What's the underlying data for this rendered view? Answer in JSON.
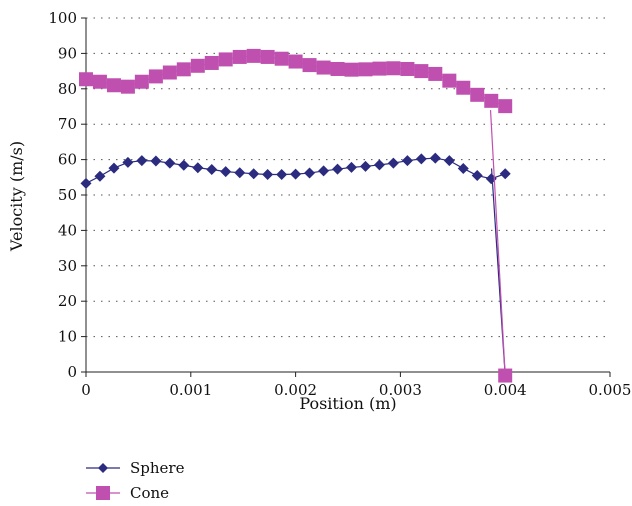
{
  "chart_data": {
    "type": "line",
    "xlabel": "Position (m)",
    "ylabel": "Velocity (m/s)",
    "xlim": [
      0,
      0.005
    ],
    "ylim": [
      0,
      100
    ],
    "x_ticks": [
      0,
      0.001,
      0.002,
      0.003,
      0.004,
      0.005
    ],
    "x_tick_labels": [
      "0",
      "0.001",
      "0.002",
      "0.003",
      "0.004",
      "0.005"
    ],
    "y_ticks": [
      0,
      10,
      20,
      30,
      40,
      50,
      60,
      70,
      80,
      90,
      100
    ],
    "y_tick_labels": [
      "0",
      "10",
      "20",
      "30",
      "40",
      "50",
      "60",
      "70",
      "80",
      "90",
      "100"
    ],
    "grid": "horizontal-dotted",
    "legend_position": "bottom-left",
    "series": [
      {
        "name": "Sphere",
        "color": "#2b2b80",
        "marker": "diamond",
        "x": [
          0,
          0.000133,
          0.000267,
          0.0004,
          0.000533,
          0.000667,
          0.0008,
          0.000933,
          0.001067,
          0.0012,
          0.001333,
          0.001467,
          0.0016,
          0.001733,
          0.001867,
          0.002,
          0.002133,
          0.002267,
          0.0024,
          0.002533,
          0.002667,
          0.0028,
          0.002933,
          0.003067,
          0.0032,
          0.003333,
          0.003467,
          0.0036,
          0.003733,
          0.003867,
          0.004
        ],
        "y": [
          53.3,
          55.3,
          57.6,
          59.2,
          59.7,
          59.6,
          59.0,
          58.4,
          57.7,
          57.2,
          56.6,
          56.3,
          56.0,
          55.8,
          55.8,
          55.9,
          56.2,
          56.8,
          57.3,
          57.8,
          58.1,
          58.5,
          59.0,
          59.7,
          60.2,
          60.4,
          59.7,
          57.5,
          55.5,
          54.6,
          56.0
        ],
        "tail_x": [
          0.00387,
          0.004
        ],
        "tail_y": [
          57.5,
          -1
        ]
      },
      {
        "name": "Cone",
        "color": "#c050b0",
        "marker": "square",
        "x": [
          0,
          0.000133,
          0.000267,
          0.0004,
          0.000533,
          0.000667,
          0.0008,
          0.000933,
          0.001067,
          0.0012,
          0.001333,
          0.001467,
          0.0016,
          0.001733,
          0.001867,
          0.002,
          0.002133,
          0.002267,
          0.0024,
          0.002533,
          0.002667,
          0.0028,
          0.002933,
          0.003067,
          0.0032,
          0.003333,
          0.003467,
          0.0036,
          0.003733,
          0.003867,
          0.004
        ],
        "y": [
          82.7,
          82.0,
          81.0,
          80.6,
          82.0,
          83.5,
          84.6,
          85.5,
          86.5,
          87.3,
          88.3,
          89.0,
          89.3,
          89.0,
          88.5,
          87.7,
          86.7,
          86.0,
          85.6,
          85.4,
          85.5,
          85.7,
          85.8,
          85.6,
          85.0,
          84.2,
          82.3,
          80.3,
          78.3,
          76.6,
          75.1
        ],
        "tail_x": [
          0.00386,
          0.004
        ],
        "tail_y": [
          74.0,
          -1
        ]
      }
    ]
  }
}
